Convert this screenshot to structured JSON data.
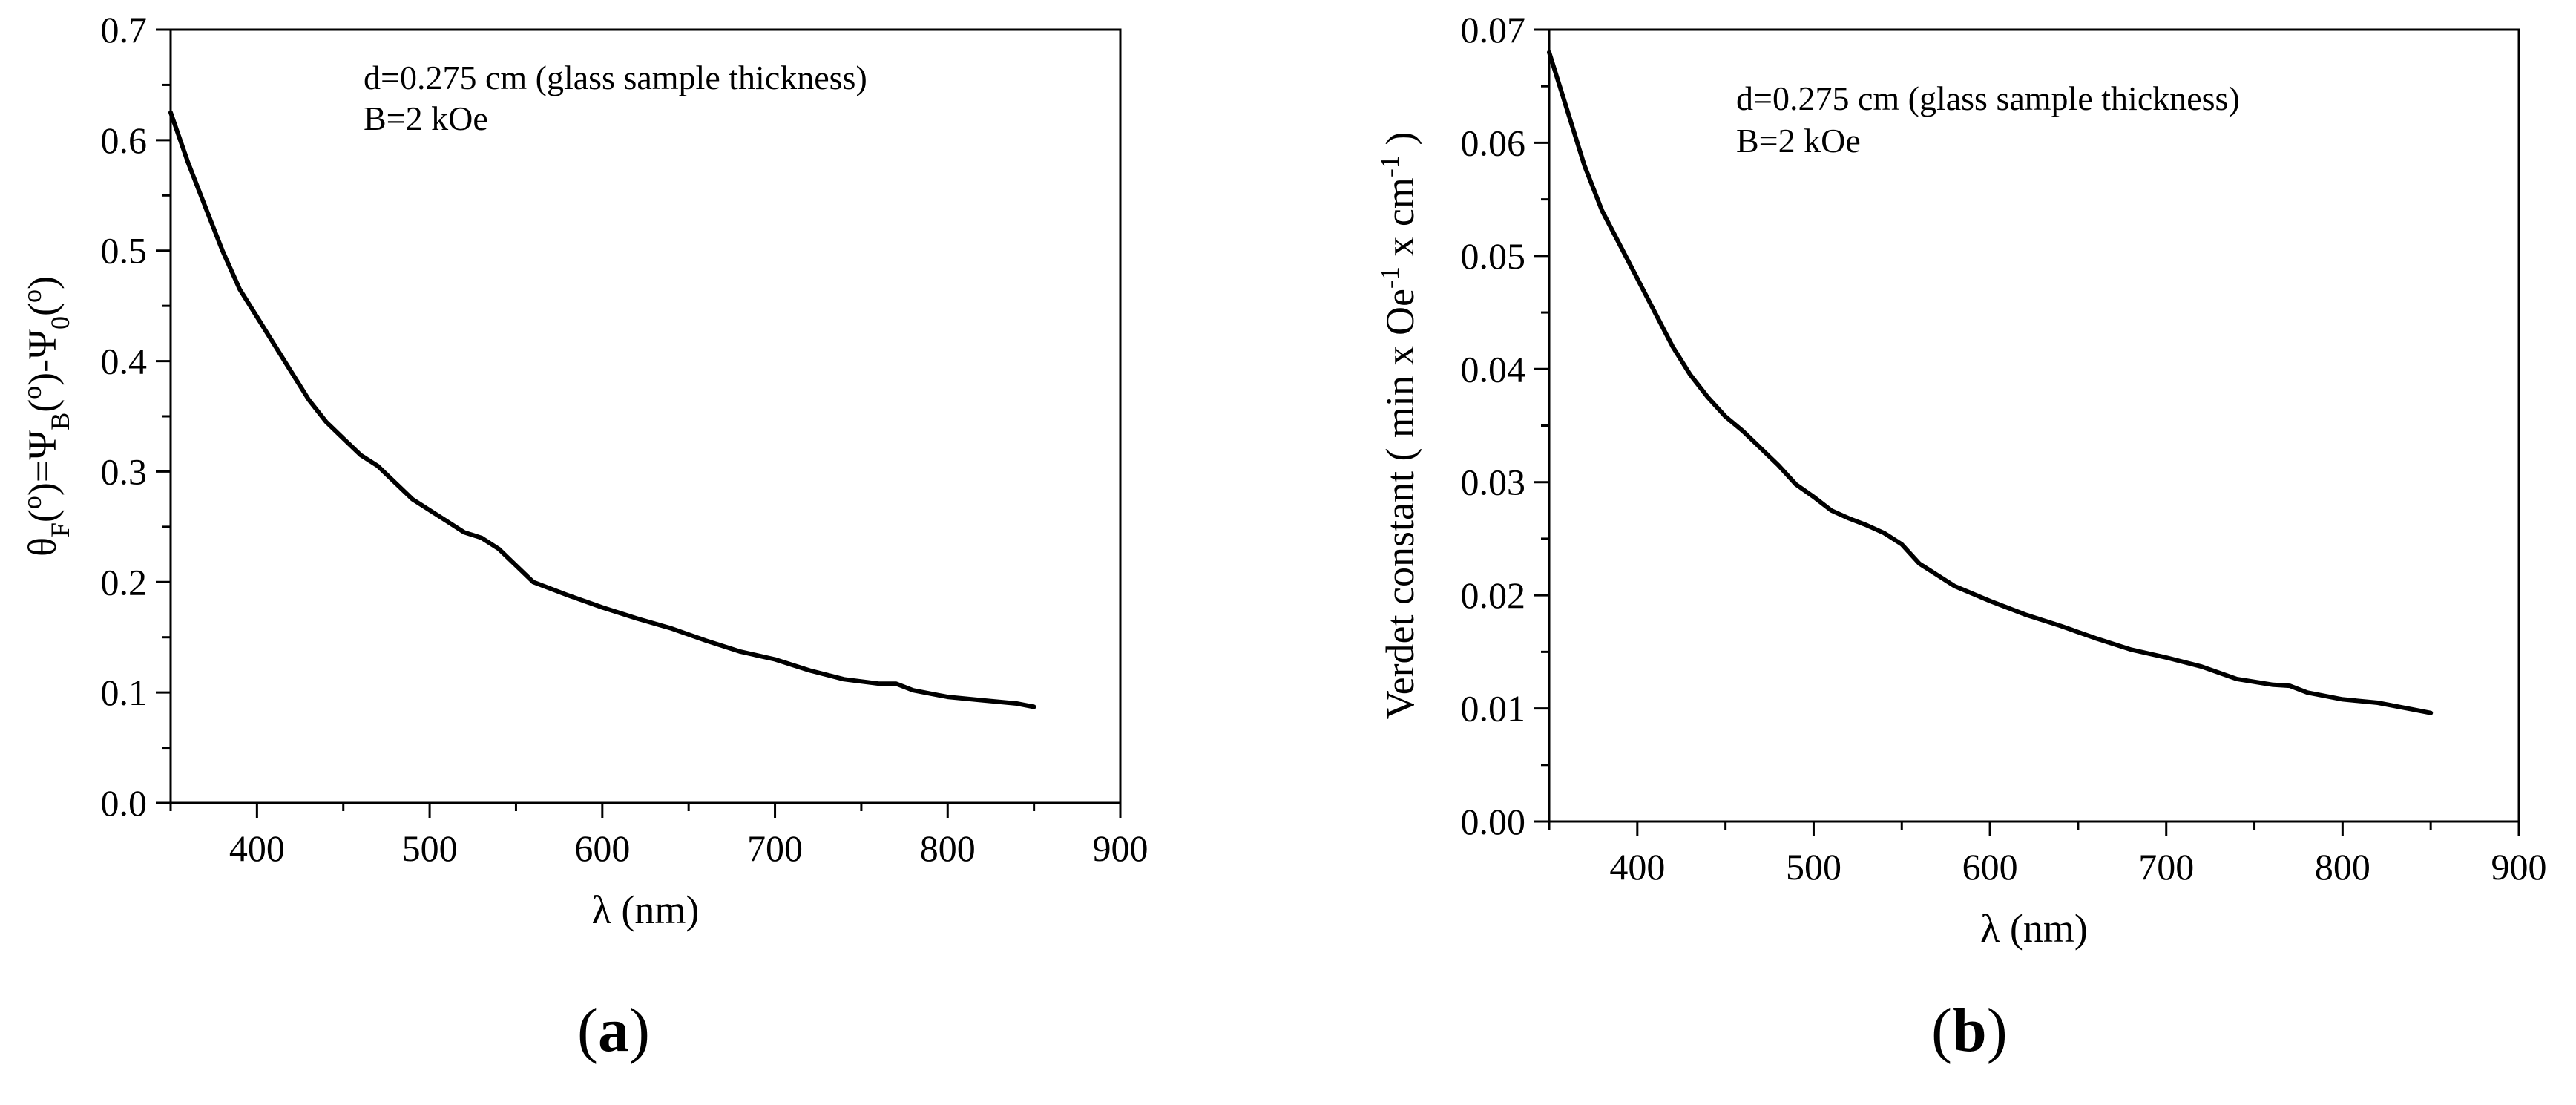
{
  "chart_data": [
    {
      "id": "a",
      "type": "line",
      "panel_label": "a",
      "xlabel": "λ (nm)",
      "ylabel_parts": [
        "θ",
        "F",
        "(",
        "o",
        ")=Ψ",
        "B",
        "(",
        "o",
        ")-Ψ",
        "0",
        "(",
        "o",
        ")"
      ],
      "xlim": [
        350,
        900
      ],
      "ylim": [
        0.0,
        0.7
      ],
      "xticks": [
        400,
        500,
        600,
        700,
        800,
        900
      ],
      "yticks": [
        0.0,
        0.1,
        0.2,
        0.3,
        0.4,
        0.5,
        0.6,
        0.7
      ],
      "ytick_labels": [
        "0.0",
        "0.1",
        "0.2",
        "0.3",
        "0.4",
        "0.5",
        "0.6",
        "0.7"
      ],
      "annotations": [
        "d=0.275 cm (glass sample thickness)",
        "B=2 kOe"
      ],
      "grid": false,
      "color": "#000000",
      "series": [
        {
          "name": "theta_F",
          "x": [
            350,
            360,
            370,
            380,
            390,
            400,
            410,
            420,
            430,
            440,
            450,
            460,
            470,
            480,
            490,
            500,
            510,
            520,
            530,
            540,
            550,
            560,
            580,
            600,
            620,
            640,
            660,
            680,
            700,
            720,
            740,
            760,
            770,
            780,
            800,
            820,
            840,
            850
          ],
          "y": [
            0.625,
            0.58,
            0.54,
            0.5,
            0.465,
            0.44,
            0.415,
            0.39,
            0.365,
            0.345,
            0.33,
            0.315,
            0.305,
            0.29,
            0.275,
            0.265,
            0.255,
            0.245,
            0.24,
            0.23,
            0.215,
            0.2,
            0.188,
            0.177,
            0.167,
            0.158,
            0.147,
            0.137,
            0.13,
            0.12,
            0.112,
            0.108,
            0.108,
            0.102,
            0.096,
            0.093,
            0.09,
            0.087
          ]
        }
      ]
    },
    {
      "id": "b",
      "type": "line",
      "panel_label": "b",
      "xlabel": "λ (nm)",
      "ylabel_parts": [
        "Verdet constant ( min x Oe",
        "-1",
        " x cm",
        "-1",
        " )"
      ],
      "xlim": [
        350,
        900
      ],
      "ylim": [
        0.0,
        0.07
      ],
      "xticks": [
        400,
        500,
        600,
        700,
        800,
        900
      ],
      "yticks": [
        0.0,
        0.01,
        0.02,
        0.03,
        0.04,
        0.05,
        0.06,
        0.07
      ],
      "ytick_labels": [
        "0.00",
        "0.01",
        "0.02",
        "0.03",
        "0.04",
        "0.05",
        "0.06",
        "0.07"
      ],
      "annotations": [
        "d=0.275 cm (glass sample thickness)",
        "B=2 kOe"
      ],
      "grid": false,
      "color": "#000000",
      "series": [
        {
          "name": "verdet_constant",
          "x": [
            350,
            360,
            370,
            380,
            390,
            400,
            410,
            420,
            430,
            440,
            450,
            460,
            470,
            480,
            490,
            500,
            510,
            520,
            530,
            540,
            550,
            560,
            580,
            600,
            620,
            640,
            660,
            680,
            700,
            720,
            740,
            760,
            770,
            780,
            800,
            820,
            840,
            850
          ],
          "y": [
            0.068,
            0.063,
            0.058,
            0.054,
            0.051,
            0.048,
            0.045,
            0.042,
            0.0395,
            0.0375,
            0.0358,
            0.0345,
            0.033,
            0.0315,
            0.0298,
            0.0287,
            0.0275,
            0.0268,
            0.0262,
            0.0255,
            0.0245,
            0.0228,
            0.0208,
            0.0195,
            0.0183,
            0.0173,
            0.0162,
            0.0152,
            0.0145,
            0.0137,
            0.0126,
            0.0121,
            0.012,
            0.0114,
            0.0108,
            0.0105,
            0.0099,
            0.0096
          ]
        }
      ]
    }
  ]
}
